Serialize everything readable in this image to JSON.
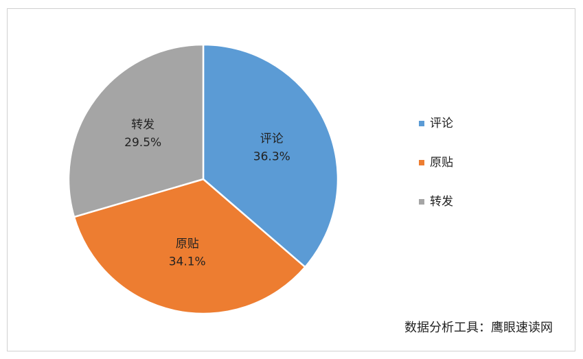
{
  "chart_data": {
    "type": "pie",
    "categories": [
      "评论",
      "原贴",
      "转发"
    ],
    "values": [
      36.3,
      34.1,
      29.5
    ],
    "value_labels": [
      "36.3%",
      "34.1%",
      "29.5%"
    ],
    "colors": [
      "#5b9bd5",
      "#ed7d31",
      "#a5a5a5"
    ],
    "legend": "right",
    "annotation": "数据分析工具：鹰眼速读网"
  }
}
